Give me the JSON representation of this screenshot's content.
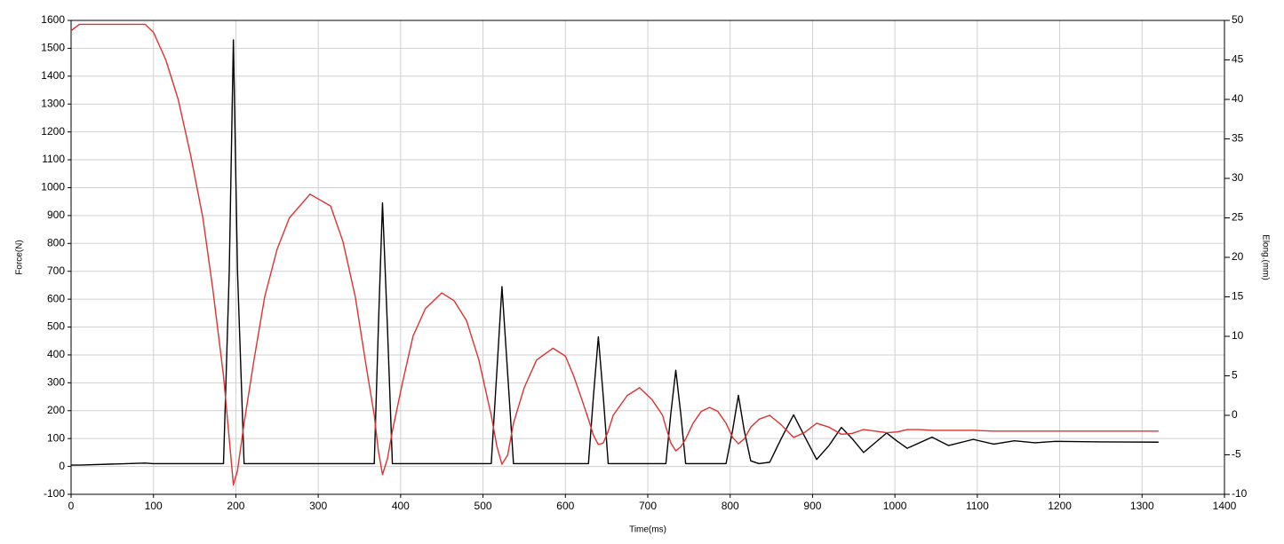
{
  "chart_data": {
    "type": "line",
    "xlabel": "Time(ms)",
    "ylabel": "Force(N)",
    "y2label": "Elong.(mm)",
    "x": [
      0,
      10,
      90,
      100,
      115,
      130,
      145,
      160,
      172,
      185,
      192,
      197,
      202,
      210,
      222,
      235,
      250,
      265,
      290,
      315,
      330,
      345,
      357,
      368,
      373,
      378,
      384,
      390,
      402,
      415,
      430,
      450,
      465,
      480,
      495,
      510,
      517,
      523,
      530,
      537,
      550,
      565,
      585,
      600,
      610,
      620,
      628,
      634,
      640,
      646,
      652,
      658,
      675,
      690,
      705,
      718,
      722,
      728,
      734,
      740,
      746,
      755,
      765,
      775,
      785,
      795,
      803,
      810,
      817,
      825,
      835,
      848,
      862,
      877,
      890,
      905,
      920,
      935,
      948,
      962,
      976,
      990,
      1003,
      1015,
      1030,
      1045,
      1065,
      1095,
      1120,
      1145,
      1170,
      1195,
      1250,
      1320
    ],
    "series": [
      {
        "color": "#000000",
        "values": [
          5,
          5,
          12,
          10,
          10,
          10,
          10,
          10,
          10,
          10,
          700,
          1530,
          700,
          10,
          10,
          10,
          10,
          10,
          10,
          10,
          10,
          10,
          10,
          10,
          500,
          945,
          500,
          10,
          10,
          10,
          10,
          10,
          10,
          10,
          10,
          10,
          350,
          645,
          330,
          10,
          10,
          10,
          10,
          10,
          10,
          10,
          10,
          250,
          465,
          250,
          10,
          10,
          10,
          10,
          10,
          10,
          10,
          190,
          345,
          190,
          10,
          10,
          10,
          10,
          10,
          10,
          130,
          255,
          130,
          20,
          10,
          15,
          100,
          185,
          110,
          25,
          75,
          140,
          100,
          50,
          85,
          120,
          90,
          65,
          85,
          105,
          75,
          97,
          80,
          92,
          85,
          90,
          88,
          87
        ]
      },
      {
        "color": "#e03030",
        "axis": "y2",
        "values": [
          48.7,
          49.5,
          49.5,
          48.5,
          45,
          40,
          33,
          25,
          16,
          5,
          -3,
          -8.8,
          -7,
          -1,
          7,
          15,
          21,
          25,
          28,
          26.5,
          22,
          15,
          7,
          0,
          -4.5,
          -7.5,
          -5.5,
          -2,
          4,
          10,
          13.5,
          15.5,
          14.5,
          12,
          7,
          0,
          -4,
          -6.2,
          -5,
          -1,
          3.5,
          7,
          8.5,
          7.5,
          5,
          2,
          -0.5,
          -2.5,
          -3.7,
          -3.5,
          -2,
          0,
          2.5,
          3.5,
          2,
          0,
          -1.5,
          -3.5,
          -4.5,
          -4,
          -3,
          -1,
          0.5,
          1,
          0.5,
          -1,
          -2.8,
          -3.6,
          -3,
          -1.5,
          -0.5,
          0,
          -1.2,
          -2.8,
          -2.2,
          -1,
          -1.5,
          -2.4,
          -2.3,
          -1.8,
          -2,
          -2.2,
          -2.1,
          -1.8,
          -1.8,
          -1.9,
          -1.9,
          -1.9,
          -2,
          -2,
          -2,
          -2,
          -2,
          -2
        ]
      }
    ],
    "xlim": [
      0,
      1400
    ],
    "xticks": [
      0,
      100,
      200,
      300,
      400,
      500,
      600,
      700,
      800,
      900,
      1000,
      1100,
      1200,
      1300,
      1400
    ],
    "ylim": [
      -100,
      1600
    ],
    "yticks": [
      -100,
      0,
      100,
      200,
      300,
      400,
      500,
      600,
      700,
      800,
      900,
      1000,
      1100,
      1200,
      1300,
      1400,
      1500,
      1600
    ],
    "y2lim": [
      -10,
      50
    ],
    "y2ticks": [
      -10,
      -5,
      0,
      5,
      10,
      15,
      20,
      25,
      30,
      35,
      40,
      45,
      50
    ],
    "grid": true
  }
}
